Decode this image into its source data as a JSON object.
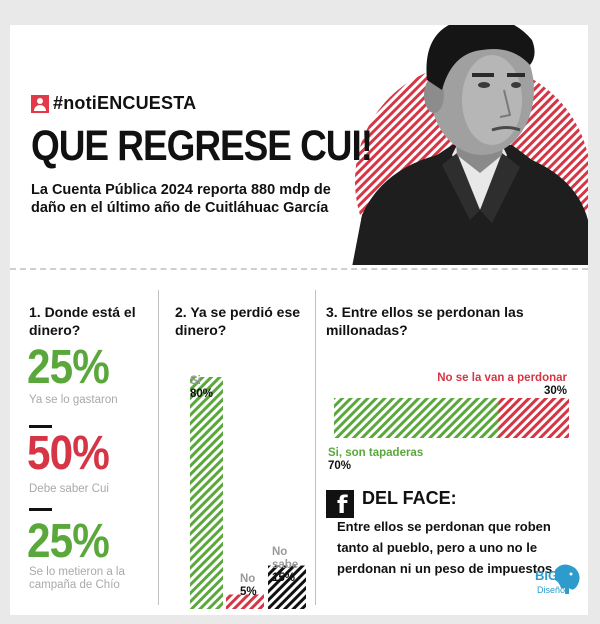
{
  "brand": {
    "icon": "user-icon",
    "text": "#notiENCUESTA"
  },
  "headline": "QUE REGRESE CUI!",
  "subhead": "La Cuenta Pública 2024 reporta 880 mdp de daño en el último año de Cuitláhuac García",
  "colors": {
    "green": "#5aa83c",
    "red": "#d63545",
    "black": "#111111",
    "gray_caption": "#a9a9a9"
  },
  "q1": {
    "title": "1. Donde está el dinero?",
    "items": [
      {
        "value": "25%",
        "caption": "Ya se lo gastaron",
        "color": "green"
      },
      {
        "value": "50%",
        "caption": "Debe saber Cui",
        "color": "red"
      },
      {
        "value": "25%",
        "caption": "Se lo metieron a la campaña de Chío",
        "color": "green"
      }
    ]
  },
  "q2": {
    "title": "2. Ya se perdió ese dinero?",
    "bars": [
      {
        "label": "Si",
        "value_text": "80%",
        "value": 80,
        "pattern": "green"
      },
      {
        "label": "No",
        "value_text": "5%",
        "value": 5,
        "pattern": "red"
      },
      {
        "label": "No sabe",
        "value_text": "15%",
        "value": 15,
        "pattern": "black"
      }
    ]
  },
  "q3": {
    "title": "3. Entre ellos se perdonan las millonadas?",
    "segments": [
      {
        "label": "Si, son tapaderas",
        "value_text": "70%",
        "value": 70,
        "pattern": "green"
      },
      {
        "label": "No se la van a perdonar",
        "value_text": "30%",
        "value": 30,
        "pattern": "red"
      }
    ]
  },
  "face": {
    "icon": "facebook-icon",
    "title": "DEL FACE:",
    "text": "Entre ellos se perdonan que roben tanto al pueblo, pero a uno no le perdonan ni un peso de impuestos"
  },
  "logo": {
    "big": "BIG",
    "sub": "Diseño",
    "icon": "elephant-icon"
  }
}
